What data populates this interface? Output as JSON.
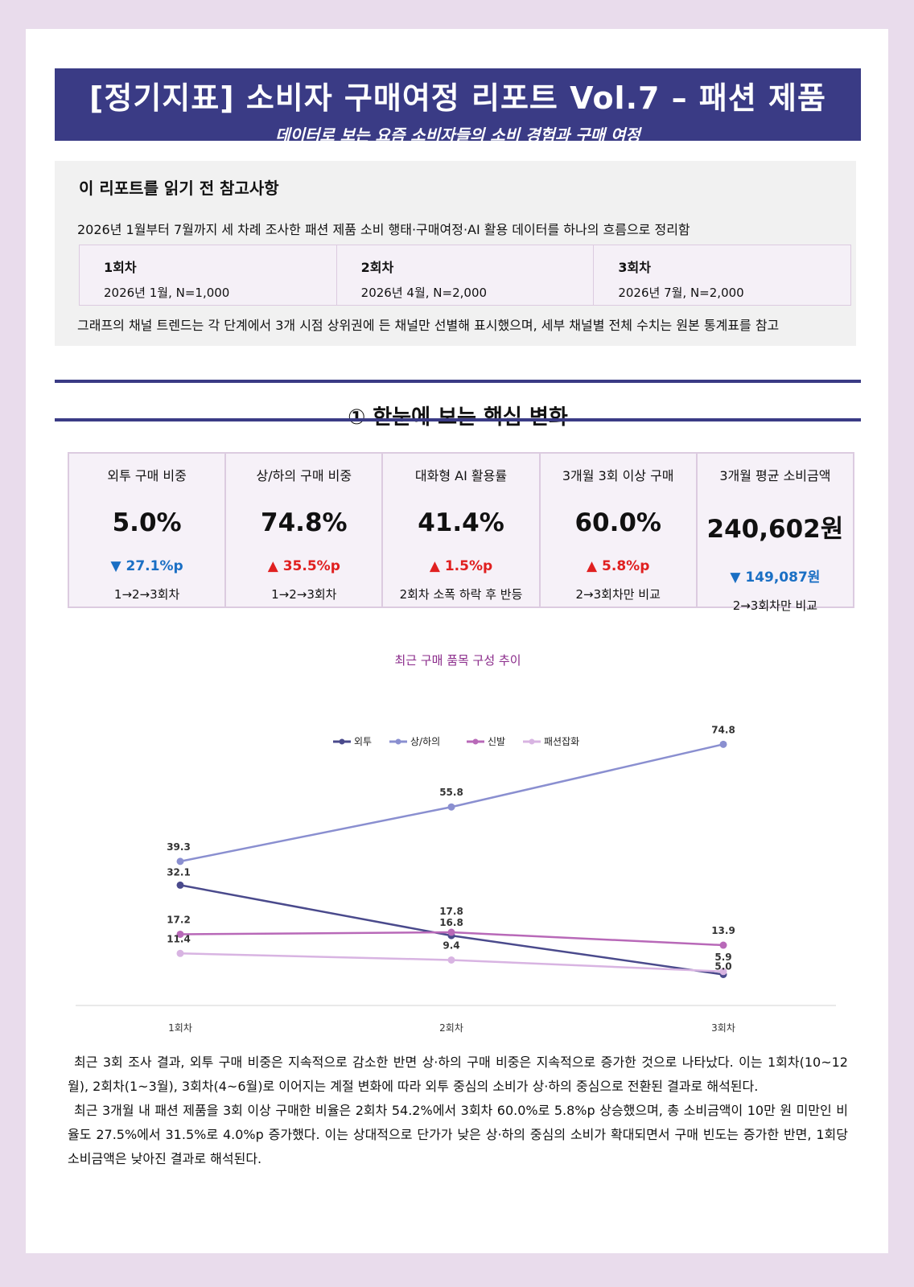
{
  "header": {
    "title": "[정기지표] 소비자 구매여정 리포트 Vol.7 – 패션 제품",
    "subtitle": "데이터로 보는 요즘 소비자들의 소비 경험과 구매 여정"
  },
  "notes": {
    "heading": "이 리포트를 읽기 전 참고사항",
    "desc": "2026년 1월부터 7월까지 세 차례 조사한 패션 제품 소비 행태·구매여정·AI 활용 데이터를 하나의 흐름으로 정리함",
    "rounds": [
      {
        "name": "1회차",
        "detail": "2026년 1월, N=1,000"
      },
      {
        "name": "2회차",
        "detail": "2026년 4월, N=2,000"
      },
      {
        "name": "3회차",
        "detail": "2026년 7월, N=2,000"
      }
    ],
    "footnote": "그래프의 채널 트렌드는 각 단계에서 3개 시점 상위권에 든 채널만 선별해 표시했으며, 세부 채널별 전체 수치는 원본 통계표를 참고"
  },
  "section": {
    "title": "① 한눈에 보는 핵심 변화"
  },
  "kpis": [
    {
      "label": "외투 구매 비중",
      "value": "5.0%",
      "change": "▼ 27.1%p",
      "direction": "down",
      "note": "1→2→3회차"
    },
    {
      "label": "상/하의 구매 비중",
      "value": "74.8%",
      "change": "▲ 35.5%p",
      "direction": "up",
      "note": "1→2→3회차"
    },
    {
      "label": "대화형 AI 활용률",
      "value": "41.4%",
      "change": "▲ 1.5%p",
      "direction": "up",
      "note": "2회차 소폭 하락 후 반등"
    },
    {
      "label": "3개월 3회 이상 구매",
      "value": "60.0%",
      "change": "▲ 5.8%p",
      "direction": "up",
      "note": "2→3회차만 비교"
    },
    {
      "label": "3개월 평균 소비금액",
      "value": "240,602원",
      "change": "▼ 149,087원",
      "direction": "down",
      "note": "2→3회차만 비교"
    }
  ],
  "chart_title": "최근 구매 품목 구성 추이",
  "chart_data": {
    "type": "line",
    "title": "최근 구매 품목 구성 추이",
    "categories": [
      "1회차",
      "2회차",
      "3회차"
    ],
    "series": [
      {
        "name": "외투",
        "values": [
          32.1,
          16.8,
          5.0
        ],
        "color": "#4a4a8c"
      },
      {
        "name": "상/하의",
        "values": [
          39.3,
          55.8,
          74.8
        ],
        "color": "#8a8fd0"
      },
      {
        "name": "신발",
        "values": [
          17.2,
          17.8,
          13.9
        ],
        "color": "#b869b8"
      },
      {
        "name": "패션잡화",
        "values": [
          11.4,
          9.4,
          5.9
        ],
        "color": "#d8b4e2"
      }
    ],
    "ylim": [
      0,
      80
    ],
    "grid": false,
    "legend": "top"
  },
  "body": {
    "p1": "최근 3회 조사 결과, 외투 구매 비중은 지속적으로 감소한 반면 상·하의 구매 비중은 지속적으로 증가한 것으로 나타났다. 이는 1회차(10~12월), 2회차(1~3월), 3회차(4~6월)로 이어지는 계절 변화에 따라 외투 중심의 소비가 상·하의 중심으로 전환된 결과로 해석된다.",
    "p2": "최근 3개월 내 패션 제품을 3회 이상 구매한 비율은 2회차 54.2%에서 3회차 60.0%로 5.8%p 상승했으며, 총 소비금액이 10만 원 미만인 비율도 27.5%에서 31.5%로 4.0%p 증가했다. 이는 상대적으로 단가가 낮은 상·하의 중심의 소비가 확대되면서 구매 빈도는 증가한 반면, 1회당 소비금액은 낮아진 결과로 해석된다."
  }
}
